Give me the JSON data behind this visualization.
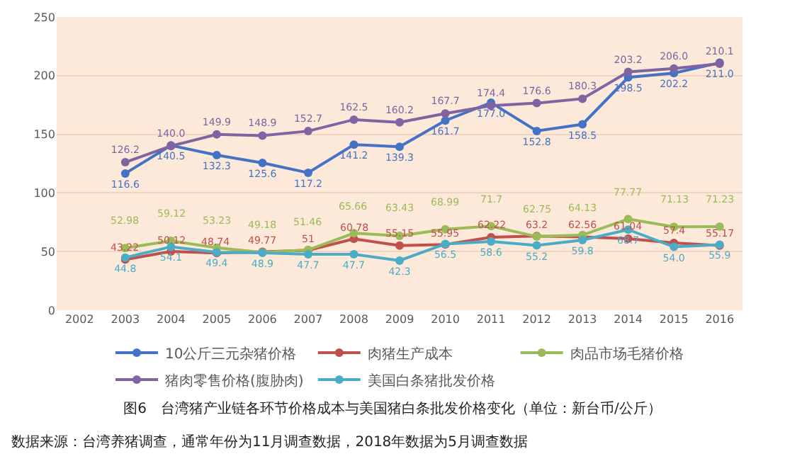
{
  "chart_data": {
    "type": "line",
    "title": "图6　台湾猪产业链各环节价格成本与美国猪白条批发价格变化（单位：新台币/公斤）",
    "annotations": [
      "数据来源：台湾养猪调查，通常年份为11月调查数据，2018年数据为5月调查数据"
    ],
    "categories": [
      "2002",
      "2003",
      "2004",
      "2005",
      "2006",
      "2007",
      "2008",
      "2009",
      "2010",
      "2011",
      "2012",
      "2013",
      "2014",
      "2015",
      "2016"
    ],
    "ylim": [
      0,
      250
    ],
    "yticks": [
      0,
      50,
      100,
      150,
      200,
      250
    ],
    "grid": "y",
    "legend": "bottom",
    "marker": "circle",
    "line_style": "solid",
    "series": [
      {
        "name": "10公斤三元杂猪价格",
        "color": "#4472c4",
        "values": [
          null,
          116.6,
          140.5,
          132.3,
          125.6,
          117.2,
          141.2,
          139.3,
          161.7,
          177.0,
          152.8,
          158.5,
          198.5,
          202.2,
          211.0
        ],
        "value_labels": [
          null,
          "116.6",
          "140.5",
          "132.3",
          "125.6",
          "117.2",
          "141.2",
          "139.3",
          "161.7",
          "177.0",
          "152.8",
          "158.5",
          "198.5",
          "202.2",
          "211.0"
        ]
      },
      {
        "name": "肉猪生产成本",
        "color": "#c0504d",
        "values": [
          null,
          43.22,
          50.12,
          48.74,
          49.77,
          51,
          60.78,
          55.15,
          55.95,
          62.22,
          63.2,
          62.56,
          61.04,
          57.4,
          55.17
        ],
        "value_labels": [
          null,
          "43.22",
          "50.12",
          "48.74",
          "49.77",
          "51",
          "60.78",
          "55.15",
          "55.95",
          "62.22",
          "63.2",
          "62.56",
          "61.04",
          "57.4",
          "55.17"
        ]
      },
      {
        "name": "肉品市场毛猪价格",
        "color": "#9bbb59",
        "values": [
          null,
          52.98,
          59.12,
          53.23,
          49.18,
          51.46,
          65.66,
          63.43,
          68.99,
          71.7,
          62.75,
          64.13,
          77.77,
          71.13,
          71.23
        ],
        "value_labels": [
          null,
          "52.98",
          "59.12",
          "53.23",
          "49.18",
          "51.46",
          "65.66",
          "63.43",
          "68.99",
          "71.7",
          "62.75",
          "64.13",
          "77.77",
          "71.13",
          "71.23"
        ]
      },
      {
        "name": "猪肉零售价格(腹胁肉)",
        "color": "#8064a2",
        "values": [
          null,
          126.2,
          140.0,
          149.9,
          148.9,
          152.7,
          162.5,
          160.2,
          167.7,
          174.4,
          176.6,
          180.3,
          203.2,
          206.0,
          210.1
        ],
        "value_labels": [
          null,
          "126.2",
          "140.0",
          "149.9",
          "148.9",
          "152.7",
          "162.5",
          "160.2",
          "167.7",
          "174.4",
          "176.6",
          "180.3",
          "203.2",
          "206.0",
          "210.1"
        ]
      },
      {
        "name": "美国白条猪批发价格",
        "color": "#4bacc6",
        "values": [
          null,
          44.8,
          54.1,
          49.4,
          48.9,
          47.7,
          47.7,
          42.3,
          56.5,
          58.6,
          55.2,
          59.8,
          68.7,
          54.0,
          55.9
        ],
        "value_labels": [
          null,
          "44.8",
          "54.1",
          "49.4",
          "48.9",
          "47.7",
          "47.7",
          "42.3",
          "56.5",
          "58.6",
          "55.2",
          "59.8",
          "68.7",
          "54.0",
          "55.9"
        ]
      }
    ]
  }
}
